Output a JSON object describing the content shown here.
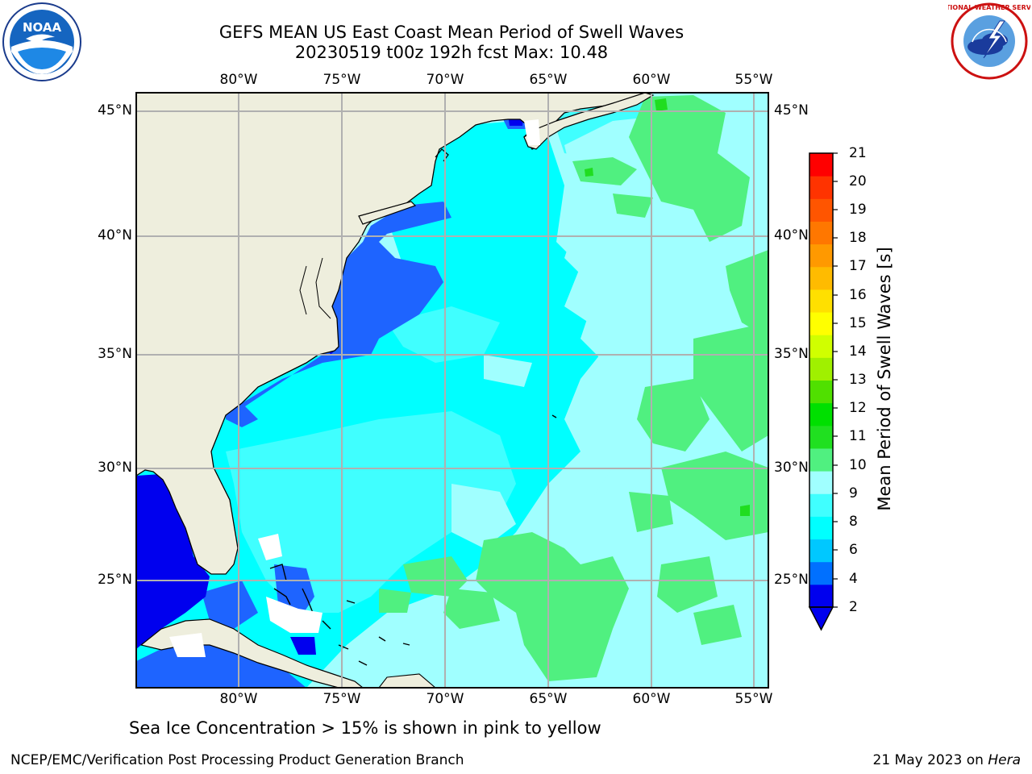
{
  "title_line1": "GEFS MEAN US East Coast Mean Period of Swell Waves",
  "title_line2": "20230519 t00z 192h fcst   Max: 10.48",
  "lon_labels": [
    "80°W",
    "75°W",
    "70°W",
    "65°W",
    "60°W",
    "55°W"
  ],
  "lat_labels": [
    "45°N",
    "40°N",
    "35°N",
    "30°N",
    "25°N"
  ],
  "colorbar": {
    "title": "Mean Period of Swell Waves [s]",
    "ticks": [
      "21",
      "20",
      "19",
      "18",
      "17",
      "16",
      "15",
      "14",
      "13",
      "12",
      "11",
      "10",
      "9",
      "8",
      "6",
      "4",
      "2"
    ],
    "colors": [
      "#0000ee",
      "#0070ff",
      "#00c8ff",
      "#00ffff",
      "#40ffff",
      "#a0ffff",
      "#50f080",
      "#20e020",
      "#00e000",
      "#50e000",
      "#a0f000",
      "#d0ff00",
      "#ffff00",
      "#ffe000",
      "#ffbb00",
      "#ff9900",
      "#ff7700",
      "#ff5500",
      "#ff3300",
      "#ff0000"
    ],
    "under_color": "#0000ee"
  },
  "map_colors": {
    "land": "#eeeedd",
    "ocean_base": "#a0ffff",
    "period_2_4": "#0000ee",
    "period_4_6": "#1e64ff",
    "period_6_7": "#00ffff",
    "period_7_8": "#40ffff",
    "period_8_9": "#a0ffff",
    "period_9_10": "#50f080",
    "period_10_11": "#20dd20",
    "gridlines": "#b0b0b0"
  },
  "footer_note": "Sea Ice Concentration > 15% is shown in pink to yellow",
  "credit": "NCEP/EMC/Verification Post Processing Product Generation Branch",
  "date_text": "21 May 2023 on",
  "host_text": "Hera",
  "logo_left_text": "NOAA",
  "logo_right_text": "NATIONAL WEATHER SERVICE"
}
